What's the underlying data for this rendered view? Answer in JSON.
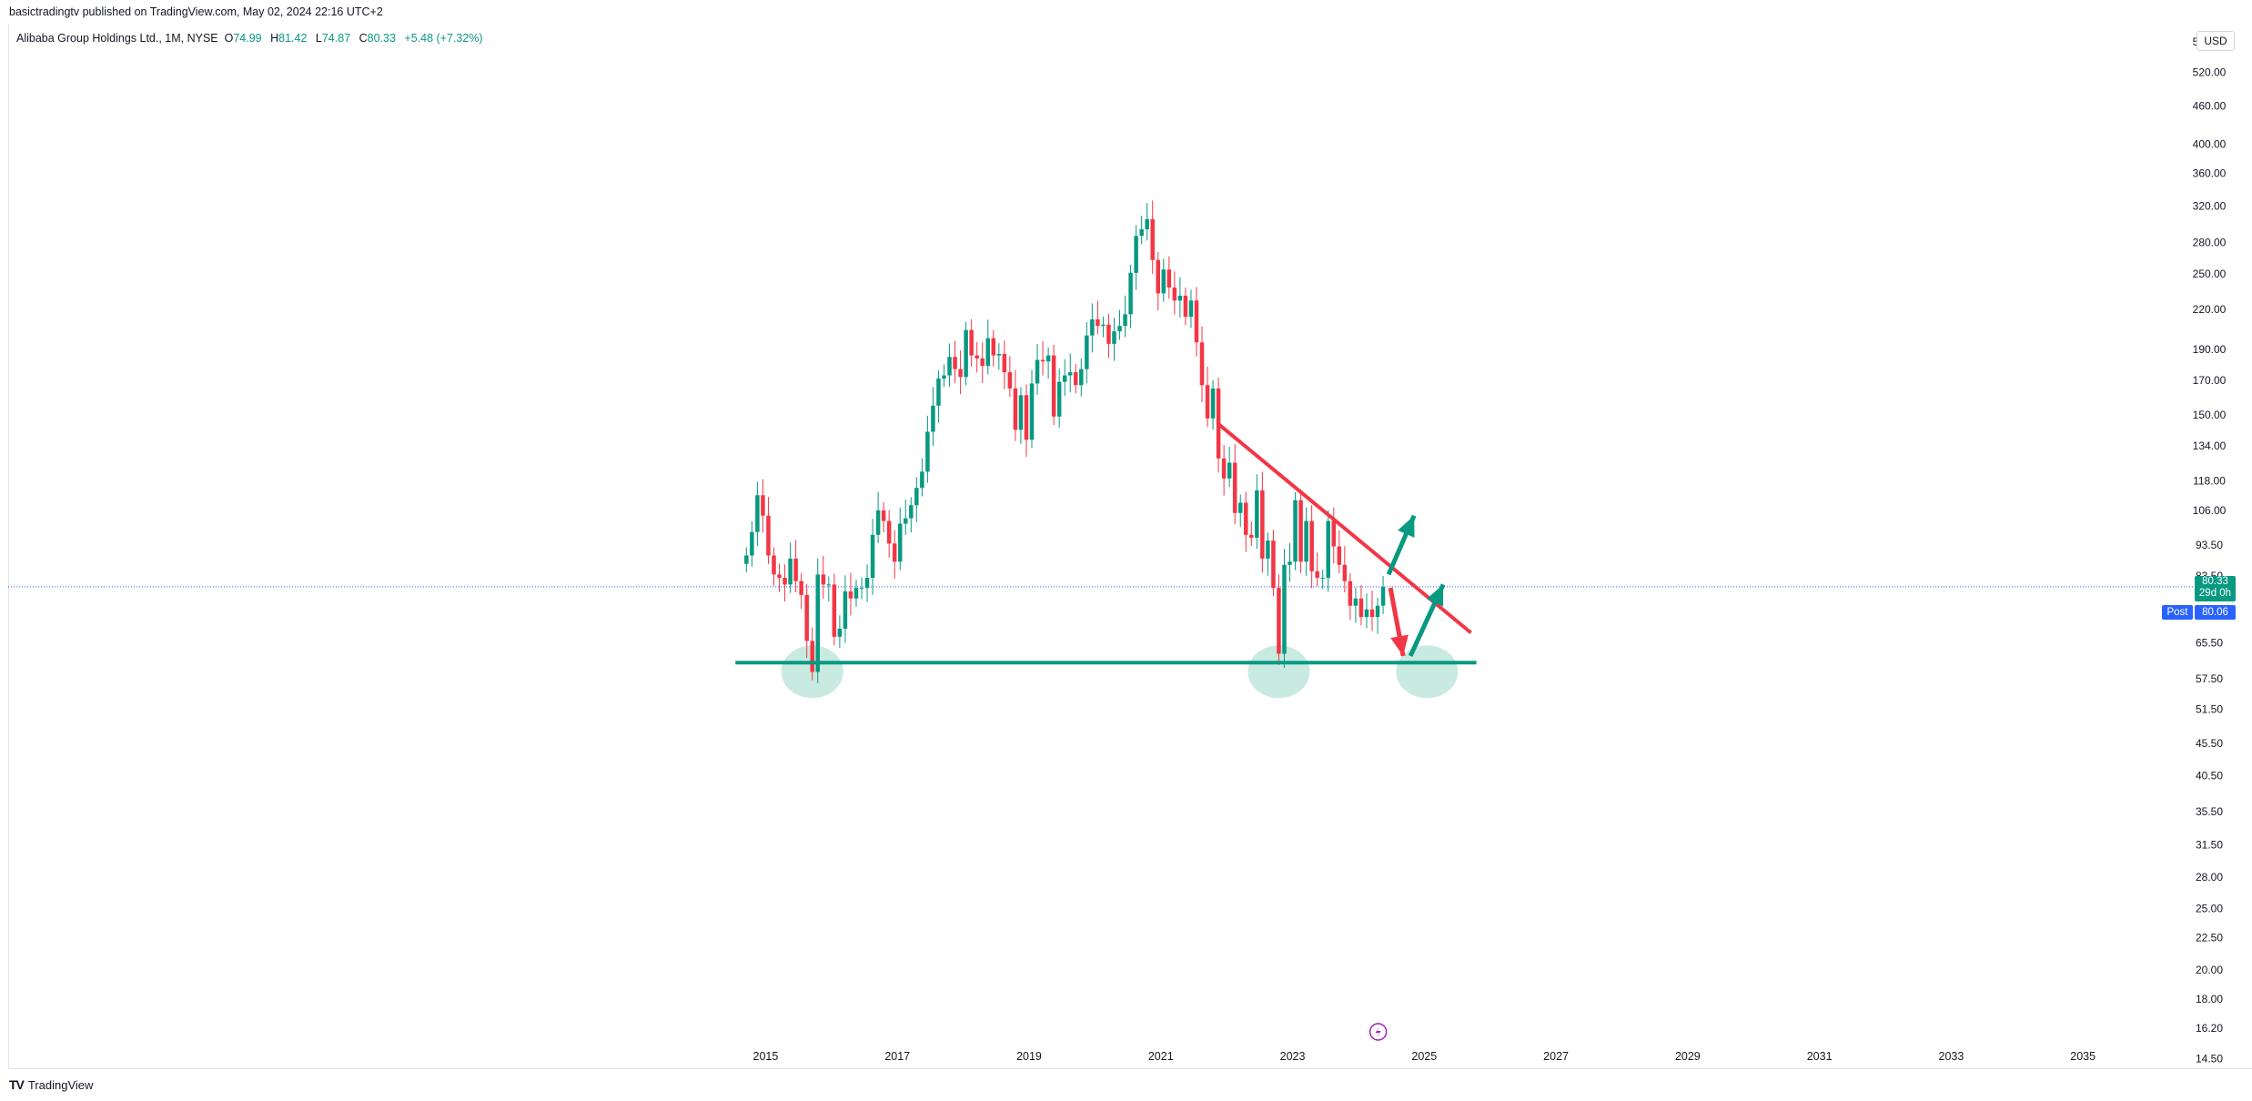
{
  "header": {
    "published_by": "basictradingtv published on TradingView.com, May 02, 2024 22:16 UTC+2"
  },
  "legend": {
    "symbol": "Alibaba Group Holdings Ltd., 1M, NYSE",
    "open_label": "O",
    "open": "74.99",
    "high_label": "H",
    "high": "81.42",
    "low_label": "L",
    "low": "74.87",
    "close_label": "C",
    "close": "80.33",
    "change": "+5.48 (+7.32%)"
  },
  "price_axis": {
    "currency": "USD",
    "last_price": "80.33",
    "countdown": "29d 0h",
    "post_label": "Post",
    "post_price": "80.06"
  },
  "footer": {
    "brand": "TradingView"
  },
  "colors": {
    "up": "#089981",
    "down": "#f23645",
    "trendline": "#f23645",
    "support": "#089981",
    "highlight": "#bfe6dc",
    "price_line": "#2962ff"
  },
  "icons": {
    "logo": "tradingview-logo-icon",
    "dividends": "lightning-icon"
  },
  "chart_data": {
    "type": "candlestick",
    "scale": "log",
    "ylim": [
      14,
      620
    ],
    "xlim": [
      2003.5,
      2036.6
    ],
    "y_ticks": [
      "580.00",
      "520.00",
      "460.00",
      "400.00",
      "360.00",
      "320.00",
      "280.00",
      "250.00",
      "220.00",
      "190.00",
      "170.00",
      "150.00",
      "134.00",
      "118.00",
      "106.00",
      "93.50",
      "83.50",
      "65.50",
      "57.50",
      "51.50",
      "45.50",
      "40.50",
      "35.50",
      "31.50",
      "28.00",
      "25.00",
      "22.50",
      "20.00",
      "18.00",
      "16.20",
      "14.50"
    ],
    "x_ticks": [
      "2015",
      "2017",
      "2019",
      "2021",
      "2023",
      "2025",
      "2027",
      "2029",
      "2031",
      "2033",
      "2035"
    ],
    "series_close": [
      [
        "2014-09",
        90
      ],
      [
        "2014-10",
        98
      ],
      [
        "2014-11",
        112
      ],
      [
        "2014-12",
        104
      ],
      [
        "2015-01",
        90
      ],
      [
        "2015-02",
        84
      ],
      [
        "2015-03",
        83
      ],
      [
        "2015-04",
        81
      ],
      [
        "2015-05",
        89
      ],
      [
        "2015-06",
        82
      ],
      [
        "2015-07",
        78
      ],
      [
        "2015-08",
        66
      ],
      [
        "2015-09",
        59
      ],
      [
        "2015-10",
        84
      ],
      [
        "2015-11",
        81
      ],
      [
        "2015-12",
        81
      ],
      [
        "2016-01",
        67
      ],
      [
        "2016-02",
        69
      ],
      [
        "2016-03",
        79
      ],
      [
        "2016-04",
        77
      ],
      [
        "2016-05",
        80
      ],
      [
        "2016-06",
        80
      ],
      [
        "2016-07",
        83
      ],
      [
        "2016-08",
        97
      ],
      [
        "2016-09",
        106
      ],
      [
        "2016-10",
        102
      ],
      [
        "2016-11",
        94
      ],
      [
        "2016-12",
        88
      ],
      [
        "2017-01",
        101
      ],
      [
        "2017-02",
        103
      ],
      [
        "2017-03",
        108
      ],
      [
        "2017-04",
        115
      ],
      [
        "2017-05",
        122
      ],
      [
        "2017-06",
        141
      ],
      [
        "2017-07",
        155
      ],
      [
        "2017-08",
        171
      ],
      [
        "2017-09",
        173
      ],
      [
        "2017-10",
        185
      ],
      [
        "2017-11",
        177
      ],
      [
        "2017-12",
        172
      ],
      [
        "2018-01",
        204
      ],
      [
        "2018-02",
        186
      ],
      [
        "2018-03",
        184
      ],
      [
        "2018-04",
        179
      ],
      [
        "2018-05",
        198
      ],
      [
        "2018-06",
        186
      ],
      [
        "2018-07",
        187
      ],
      [
        "2018-08",
        175
      ],
      [
        "2018-09",
        165
      ],
      [
        "2018-10",
        142
      ],
      [
        "2018-11",
        161
      ],
      [
        "2018-12",
        137
      ],
      [
        "2019-01",
        168
      ],
      [
        "2019-02",
        183
      ],
      [
        "2019-03",
        182
      ],
      [
        "2019-04",
        186
      ],
      [
        "2019-05",
        149
      ],
      [
        "2019-06",
        169
      ],
      [
        "2019-07",
        173
      ],
      [
        "2019-08",
        175
      ],
      [
        "2019-09",
        167
      ],
      [
        "2019-10",
        177
      ],
      [
        "2019-11",
        200
      ],
      [
        "2019-12",
        212
      ],
      [
        "2020-01",
        207
      ],
      [
        "2020-02",
        208
      ],
      [
        "2020-03",
        194
      ],
      [
        "2020-04",
        203
      ],
      [
        "2020-05",
        207
      ],
      [
        "2020-06",
        216
      ],
      [
        "2020-07",
        251
      ],
      [
        "2020-08",
        287
      ],
      [
        "2020-09",
        294
      ],
      [
        "2020-10",
        305
      ],
      [
        "2020-11",
        263
      ],
      [
        "2020-12",
        233
      ],
      [
        "2021-01",
        254
      ],
      [
        "2021-02",
        238
      ],
      [
        "2021-03",
        227
      ],
      [
        "2021-04",
        231
      ],
      [
        "2021-05",
        214
      ],
      [
        "2021-06",
        227
      ],
      [
        "2021-07",
        195
      ],
      [
        "2021-08",
        167
      ],
      [
        "2021-09",
        148
      ],
      [
        "2021-10",
        165
      ],
      [
        "2021-11",
        128
      ],
      [
        "2021-12",
        119
      ],
      [
        "2022-01",
        126
      ],
      [
        "2022-02",
        105
      ],
      [
        "2022-03",
        109
      ],
      [
        "2022-04",
        97
      ],
      [
        "2022-05",
        96
      ],
      [
        "2022-06",
        114
      ],
      [
        "2022-07",
        89
      ],
      [
        "2022-08",
        95
      ],
      [
        "2022-09",
        80
      ],
      [
        "2022-10",
        63
      ],
      [
        "2022-11",
        87
      ],
      [
        "2022-12",
        88
      ],
      [
        "2023-01",
        110
      ],
      [
        "2023-02",
        88
      ],
      [
        "2023-03",
        102
      ],
      [
        "2023-04",
        85
      ],
      [
        "2023-05",
        83
      ],
      [
        "2023-06",
        83
      ],
      [
        "2023-07",
        102
      ],
      [
        "2023-08",
        93
      ],
      [
        "2023-09",
        87
      ],
      [
        "2023-10",
        82
      ],
      [
        "2023-11",
        75
      ],
      [
        "2023-12",
        77
      ],
      [
        "2024-01",
        72
      ],
      [
        "2024-02",
        74
      ],
      [
        "2024-03",
        72
      ],
      [
        "2024-04",
        75
      ],
      [
        "2024-05",
        80.33
      ]
    ],
    "annotations": {
      "support_line": {
        "price": 61,
        "from": "2014-07",
        "to": "2025-10"
      },
      "trendline": {
        "from": [
          "2021-11",
          145
        ],
        "to": [
          "2025-09",
          68
        ]
      },
      "highlight_circles": [
        "2015-09",
        "2022-10",
        "2025-01"
      ],
      "arrows": [
        "up",
        "down",
        "up"
      ]
    }
  }
}
